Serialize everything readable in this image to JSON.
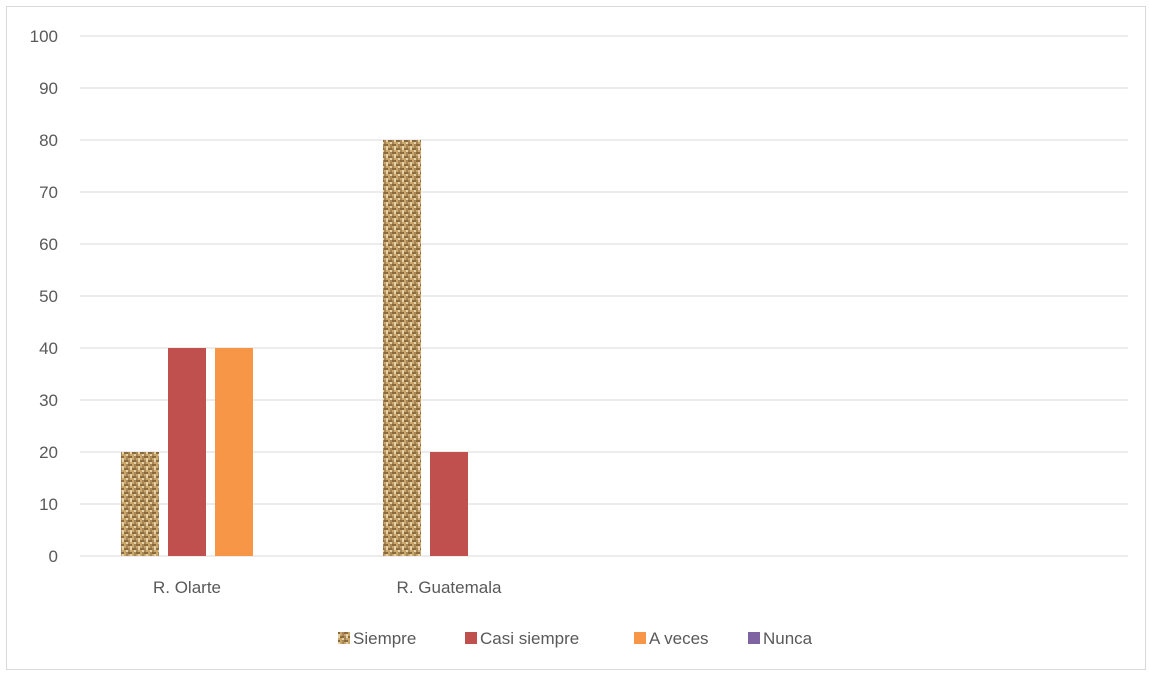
{
  "chart_data": {
    "type": "bar",
    "categories": [
      "R. Olarte",
      "R. Guatemala"
    ],
    "series": [
      {
        "name": "Siempre",
        "values": [
          20,
          80
        ],
        "color": "#c9a66b",
        "pattern": "burlap"
      },
      {
        "name": "Casi siempre",
        "values": [
          40,
          20
        ],
        "color": "#c0504d"
      },
      {
        "name": "A veces",
        "values": [
          40,
          0
        ],
        "color": "#f79646"
      },
      {
        "name": "Nunca",
        "values": [
          0,
          0
        ],
        "color": "#8064a2"
      }
    ],
    "title": "",
    "xlabel": "",
    "ylabel": "",
    "ylim": [
      0,
      100
    ],
    "yticks": [
      "0",
      "10",
      "20",
      "30",
      "40",
      "50",
      "60",
      "70",
      "80",
      "90",
      "100"
    ],
    "grid": true,
    "legend_position": "bottom"
  }
}
